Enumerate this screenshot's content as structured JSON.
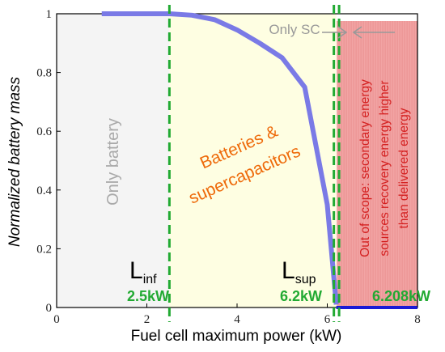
{
  "chart_data": {
    "type": "line",
    "xlabel": "Fuel cell maximum power (kW)",
    "ylabel": "Normalized battery mass",
    "xlim": [
      0,
      8
    ],
    "ylim": [
      0,
      1
    ],
    "xticks": [
      "0",
      "2",
      "4",
      "6",
      "8"
    ],
    "yticks": [
      "0",
      "0.2",
      "0.4",
      "0.6",
      "0.8",
      "1"
    ],
    "series": [
      {
        "color": "#7a7ae6",
        "x": [
          1.0,
          2.5,
          3.0,
          3.5,
          4.0,
          4.5,
          5.0,
          5.5,
          6.0,
          6.2
        ],
        "y": [
          1.0,
          1.0,
          0.995,
          0.98,
          0.945,
          0.9,
          0.85,
          0.75,
          0.35,
          0.01
        ]
      },
      {
        "color": "#1a1ad6",
        "x": [
          6.2,
          6.208,
          8.0
        ],
        "y": [
          0.0,
          0.0,
          0.0
        ]
      }
    ],
    "regions": [
      {
        "x0": 0,
        "x1": 2.5,
        "color": "#f4f4f4",
        "label": "Only battery",
        "label_color": "#a9a9a9"
      },
      {
        "x0": 2.5,
        "x1": 6.2,
        "color": "#fefee2",
        "label_line1": "Batteries  &",
        "label_line2": "supercapacitors",
        "label_color": "#ee6a0a"
      },
      {
        "x0": 6.208,
        "x1": 8.0,
        "color": "#f2a4a4",
        "label_line1": "Out of scope: secondary energy",
        "label_line2": "sources  recovery energy higher",
        "label_line3": "than delivered energy",
        "label_color": "#d42020"
      }
    ],
    "vlines": [
      {
        "x": 2.5,
        "label": "2.5kW"
      },
      {
        "x": 6.2,
        "label": "6.2kW"
      },
      {
        "x": 6.208,
        "label": "6.208kW"
      }
    ],
    "annotations": {
      "only_sc": "Only SC",
      "l_inf_main": "L",
      "l_inf_sub": "inf",
      "l_sup_main": "L",
      "l_sup_sub": "sup"
    },
    "colors": {
      "vline": "#22aa33",
      "kw_label": "#22aa33",
      "arrow": "#999999"
    }
  }
}
